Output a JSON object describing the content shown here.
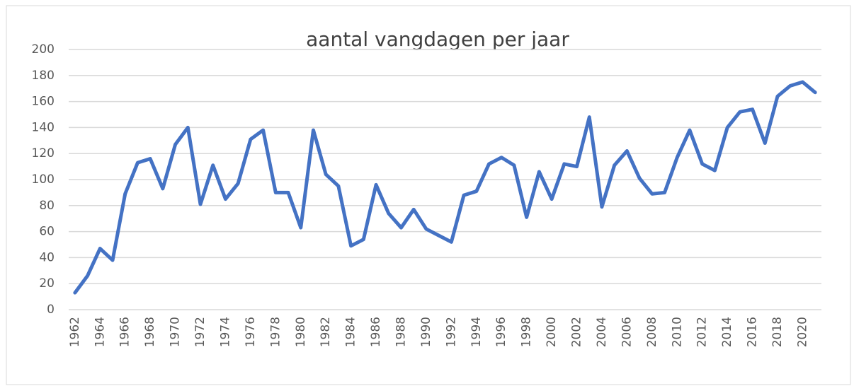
{
  "chart_data": {
    "type": "line",
    "title": "aantal vangdagen per jaar",
    "categories": [
      "1962",
      null,
      "1964",
      null,
      "1966",
      null,
      "1968",
      null,
      "1970",
      null,
      "1972",
      null,
      "1974",
      null,
      "1976",
      null,
      "1978",
      null,
      "1980",
      null,
      "1982",
      null,
      "1984",
      null,
      "1986",
      null,
      "1988",
      null,
      "1990",
      null,
      "1992",
      null,
      "1994",
      null,
      "1996",
      null,
      "1998",
      null,
      "2000",
      null,
      "2002",
      null,
      "2004",
      null,
      "2006",
      null,
      "2008",
      null,
      "2010",
      null,
      "2012",
      null,
      "2014",
      null,
      "2016",
      null,
      "2018",
      null,
      "2020",
      null
    ],
    "values": [
      13,
      26,
      47,
      38,
      89,
      113,
      116,
      93,
      127,
      140,
      81,
      111,
      85,
      97,
      131,
      138,
      90,
      90,
      63,
      138,
      104,
      95,
      49,
      54,
      96,
      74,
      63,
      77,
      62,
      57,
      52,
      88,
      91,
      112,
      117,
      111,
      71,
      106,
      85,
      112,
      110,
      148,
      79,
      111,
      122,
      101,
      89,
      90,
      117,
      138,
      112,
      107,
      140,
      152,
      154,
      128,
      164,
      172,
      175,
      167
    ],
    "color": "#4472c4",
    "ylim": [
      0,
      200
    ],
    "yticks": [
      0,
      20,
      40,
      60,
      80,
      100,
      120,
      140,
      160,
      180,
      200
    ],
    "grid": true
  }
}
